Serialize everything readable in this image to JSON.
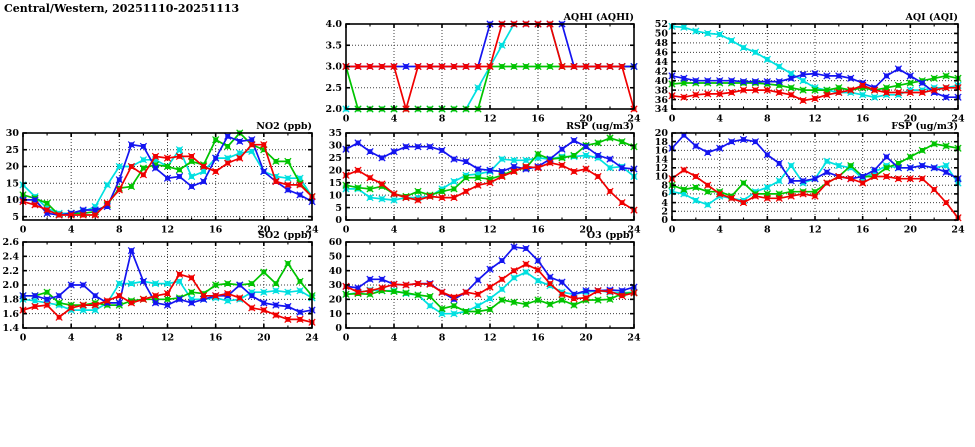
{
  "page": {
    "title": "Central/Western, 20251110-20251113"
  },
  "chart_data": [
    {
      "id": "aqhi",
      "type": "line",
      "title": "AQHI (AQHI)",
      "grid_pos": {
        "row": 0,
        "col": 1
      },
      "xlabel": "",
      "ylabel": "",
      "xlim": [
        0,
        24
      ],
      "xticks": [
        0,
        4,
        8,
        12,
        16,
        20,
        24
      ],
      "ylim": [
        2.0,
        4.0
      ],
      "yticks": [
        2.0,
        2.5,
        3.0,
        3.5,
        4.0
      ],
      "y_decimals": 1,
      "grid": true,
      "legend": "none",
      "series": [
        {
          "name": "cyan",
          "color": "#00e0e0",
          "values": [
            2,
            2,
            2,
            2,
            2,
            2,
            2,
            2,
            2,
            2,
            2,
            2.5,
            3,
            3.5,
            4,
            4,
            4,
            4,
            3,
            3,
            3,
            3,
            3,
            3,
            3
          ]
        },
        {
          "name": "green",
          "color": "#00c400",
          "values": [
            3,
            2,
            2,
            2,
            2,
            2,
            2,
            2,
            2,
            2,
            2,
            2,
            3,
            3,
            3,
            3,
            3,
            3,
            3,
            3,
            3,
            3,
            3,
            3,
            3
          ]
        },
        {
          "name": "blue",
          "color": "#1414f0",
          "values": [
            3,
            3,
            3,
            3,
            3,
            3,
            3,
            3,
            3,
            3,
            3,
            3,
            4,
            4,
            4,
            4,
            4,
            4,
            4,
            3,
            3,
            3,
            3,
            3,
            3
          ]
        },
        {
          "name": "red",
          "color": "#f00000",
          "values": [
            3,
            3,
            3,
            3,
            3,
            2,
            3,
            3,
            3,
            3,
            3,
            3,
            3,
            4,
            4,
            4,
            4,
            4,
            3,
            3,
            3,
            3,
            3,
            3,
            2
          ]
        }
      ]
    },
    {
      "id": "aqi",
      "type": "line",
      "title": "AQI (AQI)",
      "grid_pos": {
        "row": 0,
        "col": 2
      },
      "xlabel": "",
      "ylabel": "",
      "xlim": [
        0,
        24
      ],
      "xticks": [
        0,
        4,
        8,
        12,
        16,
        20,
        24
      ],
      "ylim": [
        34,
        52
      ],
      "yticks": [
        34,
        36,
        38,
        40,
        42,
        44,
        46,
        48,
        50,
        52
      ],
      "y_decimals": 0,
      "grid": true,
      "legend": "none",
      "series": [
        {
          "name": "cyan",
          "color": "#00e0e0",
          "values": [
            51.5,
            51.3,
            50.5,
            50,
            49.8,
            48.5,
            47,
            46,
            44.5,
            43,
            41.5,
            40,
            38.5,
            38,
            37.5,
            37.5,
            37,
            36.5,
            37,
            37,
            38,
            38,
            38.5,
            38.5,
            39
          ]
        },
        {
          "name": "green",
          "color": "#00c400",
          "values": [
            39.3,
            39.5,
            39.5,
            39.5,
            39.5,
            39.5,
            39.5,
            39.5,
            39.3,
            39,
            38.5,
            38,
            38,
            38,
            38.5,
            38,
            38.5,
            38,
            38.5,
            39,
            39.5,
            40,
            40.5,
            41,
            40.5
          ]
        },
        {
          "name": "blue",
          "color": "#1414f0",
          "values": [
            41,
            40.5,
            40,
            40,
            40,
            40,
            39.8,
            39.8,
            39.8,
            39.8,
            40.5,
            41.3,
            41.5,
            41,
            41,
            40.5,
            39.5,
            38.5,
            41,
            42.5,
            41,
            39.5,
            37.5,
            36.5,
            36.5
          ]
        },
        {
          "name": "red",
          "color": "#f00000",
          "values": [
            36.8,
            36.5,
            37,
            37.2,
            37.2,
            37.5,
            38,
            38,
            38,
            37.5,
            37,
            35.8,
            36.2,
            37,
            37.5,
            38,
            39,
            38,
            37.5,
            37.5,
            37.5,
            37.5,
            38,
            38.5,
            38.5
          ]
        }
      ]
    },
    {
      "id": "no2",
      "type": "line",
      "title": "NO2 (ppb)",
      "grid_pos": {
        "row": 1,
        "col": 0
      },
      "xlabel": "",
      "ylabel": "",
      "xlim": [
        0,
        24
      ],
      "xticks": [
        0,
        4,
        8,
        12,
        16,
        20,
        24
      ],
      "ylim": [
        4,
        30
      ],
      "yticks": [
        5,
        10,
        15,
        20,
        25,
        30
      ],
      "y_decimals": 0,
      "grid": true,
      "legend": "none",
      "series": [
        {
          "name": "cyan",
          "color": "#00e0e0",
          "values": [
            14.5,
            11,
            7.5,
            6,
            6,
            6.5,
            8,
            14.5,
            20,
            20,
            22,
            22,
            20,
            25,
            17,
            18.5,
            22.5,
            22.5,
            24,
            24.5,
            18.5,
            17,
            16.5,
            16.5,
            11
          ]
        },
        {
          "name": "green",
          "color": "#00c400",
          "values": [
            11.5,
            10.5,
            9,
            5.5,
            6,
            6,
            6.5,
            8.5,
            13.5,
            14,
            19.5,
            20.5,
            20,
            19,
            21.5,
            20.5,
            28,
            26,
            30,
            26.5,
            25,
            21.5,
            21.5,
            15,
            11
          ]
        },
        {
          "name": "blue",
          "color": "#1414f0",
          "values": [
            10,
            10,
            6,
            5.5,
            6,
            7,
            7,
            8,
            16,
            26.5,
            26,
            19.5,
            16.5,
            17,
            14,
            15.5,
            22.5,
            29,
            27.5,
            28,
            18.5,
            15.5,
            13,
            11.5,
            9.5
          ]
        },
        {
          "name": "red",
          "color": "#f00000",
          "values": [
            9.5,
            8.5,
            7,
            5.5,
            5.5,
            5.5,
            5.5,
            9,
            13,
            20,
            17.5,
            23,
            22.5,
            23,
            23,
            20,
            18.5,
            21,
            22.5,
            26.5,
            26.5,
            15.5,
            14.5,
            14.5,
            11
          ]
        }
      ]
    },
    {
      "id": "rsp",
      "type": "line",
      "title": "RSP (ug/m3)",
      "grid_pos": {
        "row": 1,
        "col": 1
      },
      "xlabel": "",
      "ylabel": "",
      "xlim": [
        0,
        24
      ],
      "xticks": [
        0,
        4,
        8,
        12,
        16,
        20,
        24
      ],
      "ylim": [
        0,
        35
      ],
      "yticks": [
        0,
        5,
        10,
        15,
        20,
        25,
        30,
        35
      ],
      "y_decimals": 0,
      "grid": true,
      "legend": "none",
      "series": [
        {
          "name": "cyan",
          "color": "#00e0e0",
          "values": [
            12.5,
            12.5,
            9,
            8.5,
            8,
            9,
            9,
            9.5,
            12.5,
            15.5,
            18,
            18.5,
            19.5,
            24.5,
            24,
            24,
            25,
            24.5,
            25.5,
            25.5,
            26,
            25,
            21,
            21.5,
            17.5
          ]
        },
        {
          "name": "green",
          "color": "#00c400",
          "values": [
            14,
            13,
            12.5,
            13.5,
            10.5,
            9.5,
            11.5,
            10,
            11.5,
            12.5,
            17,
            17,
            16.5,
            18,
            20,
            21,
            26.5,
            24.5,
            25,
            26,
            30,
            31,
            33,
            31.5,
            29.5
          ]
        },
        {
          "name": "blue",
          "color": "#1414f0",
          "values": [
            28.5,
            31,
            27.5,
            25,
            27.5,
            29.5,
            29.5,
            29.5,
            28,
            24.5,
            23.5,
            20.5,
            20,
            19.5,
            21.5,
            20.5,
            21.5,
            24.5,
            28.5,
            32,
            29.5,
            26,
            24.5,
            21,
            20.5
          ]
        },
        {
          "name": "red",
          "color": "#f00000",
          "values": [
            18,
            20,
            17,
            14.5,
            10.5,
            9,
            8,
            9.5,
            9,
            9,
            11.5,
            14,
            15,
            17.5,
            19.5,
            21.5,
            21,
            23,
            22,
            19.5,
            20.5,
            17.5,
            11.5,
            7,
            4
          ]
        }
      ]
    },
    {
      "id": "fsp",
      "type": "line",
      "title": "FSP (ug/m3)",
      "grid_pos": {
        "row": 1,
        "col": 2
      },
      "xlabel": "",
      "ylabel": "",
      "xlim": [
        0,
        24
      ],
      "xticks": [
        0,
        4,
        8,
        12,
        16,
        20,
        24
      ],
      "ylim": [
        0,
        20
      ],
      "yticks": [
        0,
        2,
        4,
        6,
        8,
        10,
        12,
        14,
        16,
        18,
        20
      ],
      "y_decimals": 0,
      "grid": true,
      "legend": "none",
      "series": [
        {
          "name": "cyan",
          "color": "#00e0e0",
          "values": [
            6.5,
            6,
            4.5,
            3.5,
            5.5,
            5,
            4.5,
            6.5,
            7.5,
            9,
            12.5,
            8.5,
            9.5,
            13.5,
            12.5,
            12,
            9.5,
            11,
            12.5,
            12,
            12,
            12.5,
            12,
            12.5,
            8.5
          ]
        },
        {
          "name": "green",
          "color": "#00c400",
          "values": [
            8,
            7,
            7.5,
            6.5,
            6.5,
            5.5,
            8.5,
            6,
            6,
            6,
            6.5,
            6.5,
            6.5,
            8.5,
            10,
            12.5,
            10,
            10,
            12,
            13,
            14.5,
            16,
            17.5,
            17,
            16.5
          ]
        },
        {
          "name": "blue",
          "color": "#1414f0",
          "values": [
            16.5,
            19.5,
            17,
            15.5,
            16.5,
            18,
            18.5,
            18,
            15,
            13,
            9,
            9,
            9.5,
            11,
            10,
            9.5,
            10,
            11.5,
            14.5,
            12,
            12,
            12.5,
            12,
            11,
            9.5
          ]
        },
        {
          "name": "red",
          "color": "#f00000",
          "values": [
            9.5,
            11.5,
            10,
            8,
            6,
            5,
            4,
            5.5,
            5,
            5,
            5.5,
            6,
            5.5,
            8.5,
            10,
            9.5,
            8.5,
            10,
            10,
            9.5,
            9.5,
            9.5,
            7,
            4,
            0.5
          ]
        }
      ]
    },
    {
      "id": "so2",
      "type": "line",
      "title": "SO2 (ppb)",
      "grid_pos": {
        "row": 2,
        "col": 0
      },
      "xlabel": "",
      "ylabel": "",
      "xlim": [
        0,
        24
      ],
      "xticks": [
        0,
        4,
        8,
        12,
        16,
        20,
        24
      ],
      "ylim": [
        1.4,
        2.6
      ],
      "yticks": [
        1.4,
        1.6,
        1.8,
        2.0,
        2.2,
        2.4,
        2.6
      ],
      "y_decimals": 1,
      "grid": true,
      "legend": "none",
      "series": [
        {
          "name": "cyan",
          "color": "#00e0e0",
          "values": [
            1.8,
            1.78,
            1.75,
            1.72,
            1.65,
            1.65,
            1.65,
            1.75,
            2.02,
            2.02,
            2.05,
            2.02,
            2.02,
            2.05,
            1.8,
            1.8,
            1.82,
            1.78,
            1.8,
            1.9,
            1.9,
            1.92,
            1.9,
            1.92,
            1.82
          ]
        },
        {
          "name": "green",
          "color": "#00c400",
          "values": [
            1.85,
            1.85,
            1.9,
            1.75,
            1.72,
            1.72,
            1.75,
            1.72,
            1.72,
            1.78,
            1.8,
            1.8,
            1.8,
            1.82,
            1.9,
            1.88,
            2.0,
            2.02,
            2.0,
            2.02,
            2.18,
            2.02,
            2.3,
            2.05,
            1.85
          ]
        },
        {
          "name": "blue",
          "color": "#1414f0",
          "values": [
            1.85,
            1.85,
            1.8,
            1.85,
            2.0,
            2.0,
            1.85,
            1.75,
            1.75,
            2.48,
            2.05,
            1.75,
            1.72,
            1.8,
            1.75,
            1.8,
            1.85,
            1.85,
            2.0,
            1.85,
            1.75,
            1.72,
            1.7,
            1.62,
            1.65
          ]
        },
        {
          "name": "red",
          "color": "#f00000",
          "values": [
            1.65,
            1.7,
            1.72,
            1.55,
            1.68,
            1.72,
            1.72,
            1.78,
            1.85,
            1.75,
            1.8,
            1.85,
            1.88,
            2.15,
            2.1,
            1.85,
            1.85,
            1.88,
            1.82,
            1.68,
            1.65,
            1.58,
            1.52,
            1.52,
            1.48
          ]
        }
      ]
    },
    {
      "id": "o3",
      "type": "line",
      "title": "O3 (ppb)",
      "grid_pos": {
        "row": 2,
        "col": 1
      },
      "xlabel": "",
      "ylabel": "",
      "xlim": [
        0,
        24
      ],
      "xticks": [
        0,
        4,
        8,
        12,
        16,
        20,
        24
      ],
      "ylim": [
        0,
        60
      ],
      "yticks": [
        0,
        10,
        20,
        30,
        40,
        50,
        60
      ],
      "y_decimals": 0,
      "grid": true,
      "legend": "none",
      "series": [
        {
          "name": "cyan",
          "color": "#00e0e0",
          "values": [
            23.5,
            24.5,
            26.5,
            26,
            26,
            24,
            23,
            15.5,
            10,
            10,
            11.5,
            15.5,
            20.5,
            27,
            35,
            39,
            33,
            29.5,
            25,
            23.5,
            25,
            26,
            25,
            24.5,
            25
          ]
        },
        {
          "name": "green",
          "color": "#00c400",
          "values": [
            23.5,
            24,
            23.5,
            26,
            25.5,
            24.5,
            23,
            22,
            13.5,
            15.5,
            11.5,
            11.5,
            13,
            19.5,
            18,
            16.5,
            19.5,
            16.5,
            19.5,
            16,
            19.5,
            19.5,
            20,
            24,
            24.5
          ]
        },
        {
          "name": "blue",
          "color": "#1414f0",
          "values": [
            29,
            28,
            34,
            34,
            30.5,
            30,
            31,
            31,
            25,
            20,
            25,
            33.5,
            41,
            47,
            56.5,
            55.5,
            47,
            35.5,
            32,
            23.5,
            26,
            26,
            26.5,
            26,
            28.5
          ]
        },
        {
          "name": "red",
          "color": "#f00000",
          "values": [
            29,
            25,
            26,
            28,
            30.5,
            30,
            31,
            30.5,
            25,
            21.5,
            25,
            23.5,
            28.5,
            34,
            40,
            44.5,
            40.5,
            31,
            23.5,
            20.5,
            21,
            26,
            25.5,
            22.5,
            24.5
          ]
        }
      ]
    }
  ]
}
